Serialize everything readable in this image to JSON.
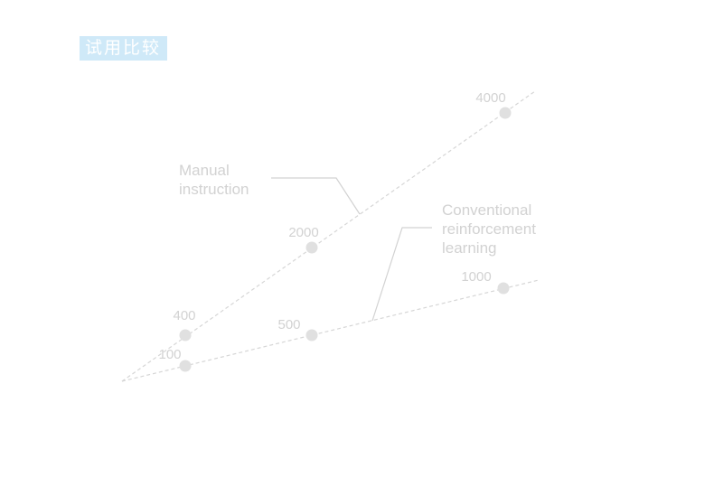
{
  "title": "试用比较",
  "series": [
    {
      "label": [
        "Manual",
        "instruction"
      ],
      "points": [
        "400",
        "2000",
        "4000"
      ]
    },
    {
      "label": [
        "Conventional",
        "reinforcement",
        "learning"
      ],
      "points": [
        "100",
        "500",
        "1000"
      ]
    }
  ]
}
